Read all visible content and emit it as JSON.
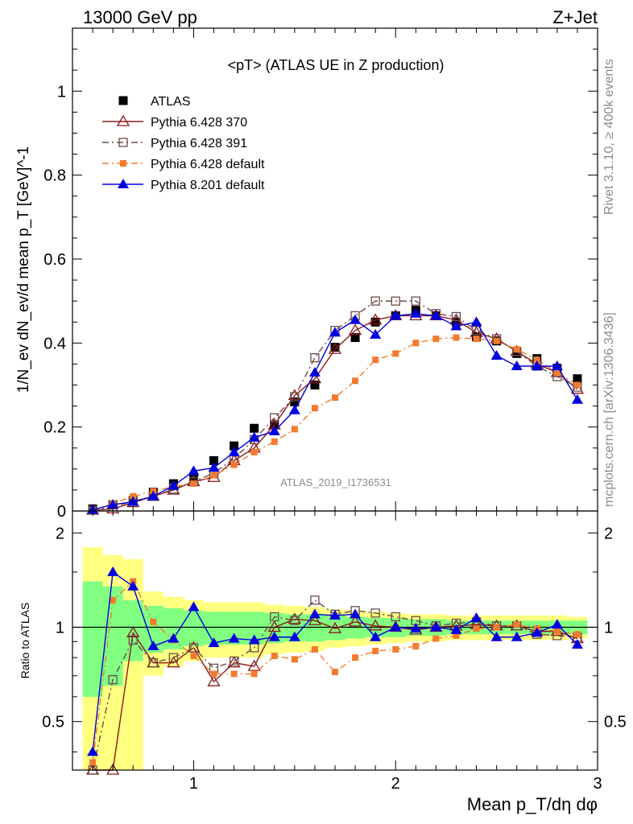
{
  "header": {
    "left": "13000 GeV pp",
    "right": "Z+Jet"
  },
  "side": {
    "top": "Rivet 3.1.10, ≥ 400k events",
    "bottom": "mcplots.cern.ch [arXiv:1306.3436]"
  },
  "watermark": "ATLAS_2019_I1736531",
  "chart_data": [
    {
      "type": "scatter",
      "title": "<pT> (ATLAS UE in Z production)",
      "xlabel": "Mean p_T/dη dφ",
      "ylabel": "1/N_ev dN_ev/d mean p_T [GeV]^-1",
      "xlim": [
        0.4,
        3.0
      ],
      "ylim": [
        0,
        1.15
      ],
      "yticks": [
        0,
        0.2,
        0.4,
        0.6,
        0.8,
        1
      ],
      "ytick_labels": [
        "0",
        "0.2",
        "0.4",
        "0.6",
        "0.8",
        "1"
      ],
      "grid": false,
      "legend_position": "top-left",
      "x": [
        0.5,
        0.6,
        0.7,
        0.8,
        0.9,
        1.0,
        1.1,
        1.2,
        1.3,
        1.4,
        1.5,
        1.6,
        1.7,
        1.8,
        1.9,
        2.0,
        2.1,
        2.2,
        2.3,
        2.4,
        2.5,
        2.6,
        2.7,
        2.8,
        2.9
      ],
      "series": [
        {
          "name": "ATLAS",
          "color": "#000000",
          "marker": "filled-square",
          "line": "none",
          "values": [
            0.005,
            0.015,
            0.025,
            0.045,
            0.065,
            0.08,
            0.12,
            0.155,
            0.197,
            0.205,
            0.26,
            0.3,
            0.39,
            0.413,
            0.45,
            0.465,
            0.478,
            0.465,
            0.45,
            0.415,
            0.405,
            0.375,
            0.363,
            0.34,
            0.315
          ]
        },
        {
          "name": "Pythia 6.428 370",
          "color": "#8b1a1a",
          "marker": "open-triangle",
          "line": "solid",
          "values": [
            0.002,
            0.005,
            0.02,
            0.035,
            0.05,
            0.07,
            0.08,
            0.12,
            0.15,
            0.205,
            0.275,
            0.315,
            0.385,
            0.43,
            0.455,
            0.465,
            0.465,
            0.465,
            0.455,
            0.425,
            0.41,
            0.38,
            0.35,
            0.33,
            0.29
          ]
        },
        {
          "name": "Pythia 6.428 391",
          "color": "#6e4a4a",
          "marker": "open-square",
          "line": "dash-dot",
          "values": [
            0.002,
            0.01,
            0.023,
            0.035,
            0.052,
            0.07,
            0.09,
            0.125,
            0.17,
            0.222,
            0.272,
            0.365,
            0.43,
            0.465,
            0.5,
            0.5,
            0.5,
            0.47,
            0.463,
            0.43,
            0.41,
            0.38,
            0.345,
            0.32,
            0.295
          ]
        },
        {
          "name": "Pythia 6.428 default",
          "color": "#f37b2e",
          "marker": "filled-square-small",
          "line": "dash-dot",
          "values": [
            0.002,
            0.018,
            0.035,
            0.047,
            0.058,
            0.065,
            0.085,
            0.11,
            0.14,
            0.165,
            0.195,
            0.245,
            0.27,
            0.31,
            0.36,
            0.375,
            0.4,
            0.41,
            0.413,
            0.41,
            0.405,
            0.385,
            0.36,
            0.33,
            0.3
          ]
        },
        {
          "name": "Pythia 8.201 default",
          "color": "#0000e0",
          "marker": "filled-triangle",
          "line": "solid",
          "values": [
            0.003,
            0.015,
            0.022,
            0.035,
            0.06,
            0.095,
            0.103,
            0.14,
            0.175,
            0.19,
            0.24,
            0.33,
            0.425,
            0.455,
            0.42,
            0.465,
            0.47,
            0.465,
            0.44,
            0.45,
            0.37,
            0.345,
            0.345,
            0.345,
            0.265
          ]
        }
      ]
    },
    {
      "type": "line",
      "ylabel": "Ratio to ATLAS",
      "xlim": [
        0.4,
        3.0
      ],
      "ylim": [
        0.35,
        2.35
      ],
      "yscale": "log",
      "xticks": [
        1,
        2,
        3
      ],
      "xtick_labels": [
        "1",
        "2",
        "3"
      ],
      "yticks": [
        0.5,
        1,
        2
      ],
      "ytick_labels": [
        "0.5",
        "1",
        "2"
      ],
      "x": [
        0.5,
        0.6,
        0.7,
        0.8,
        0.9,
        1.0,
        1.1,
        1.2,
        1.3,
        1.4,
        1.5,
        1.6,
        1.7,
        1.8,
        1.9,
        2.0,
        2.1,
        2.2,
        2.3,
        2.4,
        2.5,
        2.6,
        2.7,
        2.8,
        2.9
      ],
      "band_green_halfwidth": [
        0.4,
        0.35,
        0.22,
        0.17,
        0.15,
        0.13,
        0.12,
        0.12,
        0.12,
        0.11,
        0.1,
        0.1,
        0.09,
        0.08,
        0.07,
        0.07,
        0.06,
        0.06,
        0.05,
        0.05,
        0.05,
        0.05,
        0.05,
        0.05,
        0.05
      ],
      "band_yellow_halfwidth": [
        0.8,
        0.7,
        0.65,
        0.3,
        0.25,
        0.22,
        0.2,
        0.2,
        0.2,
        0.18,
        0.17,
        0.16,
        0.14,
        0.13,
        0.12,
        0.11,
        0.1,
        0.1,
        0.09,
        0.09,
        0.09,
        0.09,
        0.09,
        0.09,
        0.08
      ],
      "series": [
        {
          "name": "Pythia 6.428 370",
          "color": "#8b1a1a",
          "marker": "open-triangle",
          "line": "solid",
          "values": [
            0.3,
            0.34,
            0.96,
            0.77,
            0.77,
            0.86,
            0.67,
            0.77,
            0.75,
            1.0,
            1.06,
            1.05,
            0.99,
            1.04,
            1.01,
            1.0,
            0.98,
            1.0,
            1.01,
            1.02,
            1.01,
            1.01,
            0.97,
            0.97,
            0.92
          ]
        },
        {
          "name": "Pythia 6.428 391",
          "color": "#6e4a4a",
          "marker": "open-square",
          "line": "dash-dot",
          "values": [
            0.35,
            0.68,
            0.91,
            0.77,
            0.8,
            0.86,
            0.74,
            0.78,
            0.86,
            1.08,
            1.05,
            1.22,
            1.1,
            1.13,
            1.11,
            1.08,
            1.05,
            1.01,
            1.03,
            1.04,
            1.01,
            1.01,
            0.95,
            0.94,
            0.93
          ]
        },
        {
          "name": "Pythia 6.428 default",
          "color": "#f37b2e",
          "marker": "filled-square-small",
          "line": "dash-dot",
          "values": [
            0.37,
            1.22,
            1.4,
            1.04,
            0.91,
            0.81,
            0.71,
            0.71,
            0.71,
            0.81,
            0.79,
            0.85,
            0.72,
            0.8,
            0.84,
            0.85,
            0.87,
            0.92,
            0.94,
            0.99,
            1.0,
            1.02,
            0.99,
            0.97,
            0.95
          ]
        },
        {
          "name": "Pythia 8.201 default",
          "color": "#0000e0",
          "marker": "filled-triangle",
          "line": "solid",
          "values": [
            0.4,
            1.5,
            1.35,
            0.87,
            0.92,
            1.16,
            0.89,
            0.92,
            0.91,
            0.93,
            0.93,
            1.1,
            1.09,
            1.1,
            0.93,
            1.0,
            0.99,
            1.0,
            0.98,
            1.07,
            0.93,
            0.93,
            0.96,
            1.02,
            0.88
          ]
        }
      ]
    }
  ]
}
